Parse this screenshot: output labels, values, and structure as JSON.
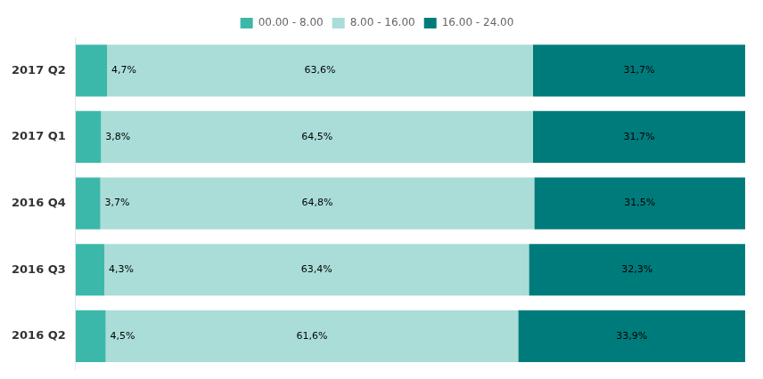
{
  "chart_data": {
    "type": "bar",
    "orientation": "horizontal",
    "stacked": true,
    "categories": [
      "2017 Q2",
      "2017 Q1",
      "2016 Q4",
      "2016 Q3",
      "2016 Q2"
    ],
    "series": [
      {
        "name": "00.00 - 8.00",
        "color": "#3cb8aa",
        "values": [
          4.7,
          3.8,
          3.7,
          4.3,
          4.5
        ],
        "value_labels": [
          "4,7%",
          "3,8%",
          "3,7%",
          "4,3%",
          "4,5%"
        ]
      },
      {
        "name": "8.00 - 16.00",
        "color": "#aaddd7",
        "values": [
          63.6,
          64.5,
          64.8,
          63.4,
          61.6
        ],
        "value_labels": [
          "63,6%",
          "64,5%",
          "64,8%",
          "63,4%",
          "61,6%"
        ]
      },
      {
        "name": "16.00 - 24.00",
        "color": "#007b7b",
        "values": [
          31.7,
          31.7,
          31.5,
          32.3,
          33.9
        ],
        "value_labels": [
          "31,7%",
          "31,7%",
          "31,5%",
          "32,3%",
          "33,9%"
        ]
      }
    ],
    "xlim": [
      0,
      100
    ],
    "tick_labels": "y",
    "data_labels": true,
    "legend": "top",
    "grid": false
  }
}
